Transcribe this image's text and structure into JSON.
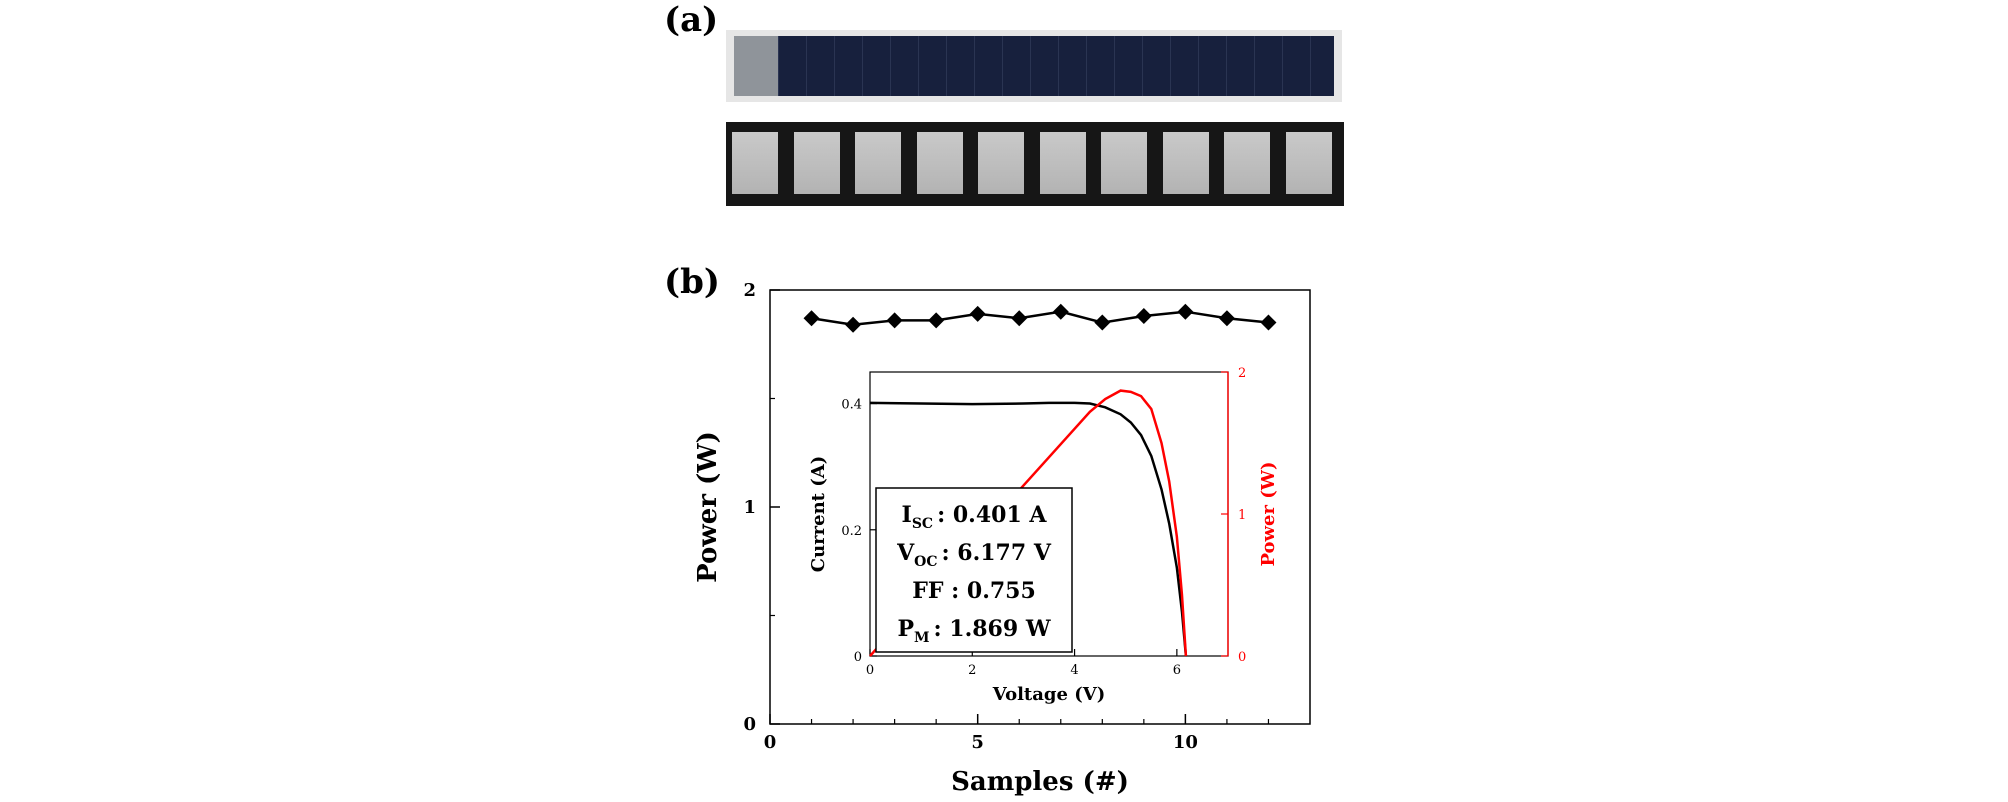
{
  "figure": {
    "panel_a_label": "(a)",
    "panel_b_label": "(b)"
  },
  "inset_box": {
    "isc_main": "I",
    "isc_sub": "SC",
    "isc_value": ": 0.401 A",
    "voc_main": "V",
    "voc_sub": "OC",
    "voc_value": ": 6.177 V",
    "ff_line": "FF : 0.755",
    "pm_main": "P",
    "pm_sub": "M",
    "pm_value": ": 1.869 W"
  },
  "colors": {
    "power_series": "#ff0000",
    "main_series": "#000000",
    "cell_photo": "#17203d"
  },
  "chart_data": [
    {
      "type": "line",
      "xlabel": "Samples (#)",
      "ylabel": "Power (W)",
      "xlim": [
        0,
        13
      ],
      "ylim": [
        0,
        2
      ],
      "xticks": [
        0,
        5,
        10
      ],
      "yticks": [
        0,
        1,
        2
      ],
      "marker": "diamond",
      "x": [
        1,
        2,
        3,
        4,
        5,
        6,
        7,
        8,
        9,
        10,
        11,
        12
      ],
      "y": [
        1.87,
        1.84,
        1.86,
        1.86,
        1.89,
        1.87,
        1.9,
        1.85,
        1.88,
        1.9,
        1.87,
        1.85
      ]
    },
    {
      "type": "line",
      "xlabel": "Voltage (V)",
      "ylabel": "Current (A)",
      "y2label": "Power (W)",
      "xlim": [
        0,
        7
      ],
      "ylim": [
        0,
        0.45
      ],
      "y2lim": [
        0,
        2
      ],
      "xticks": [
        0,
        2,
        4,
        6
      ],
      "yticks": [
        0,
        0.2,
        0.4
      ],
      "y2ticks": [
        0,
        1,
        2
      ],
      "series": [
        {
          "axis": "left",
          "color": "#000000",
          "x": [
            0,
            1,
            2,
            3,
            3.5,
            4,
            4.3,
            4.6,
            4.9,
            5.1,
            5.3,
            5.5,
            5.7,
            5.85,
            6.0,
            6.1,
            6.177
          ],
          "y": [
            0.401,
            0.4,
            0.399,
            0.4,
            0.401,
            0.401,
            0.4,
            0.394,
            0.383,
            0.37,
            0.35,
            0.317,
            0.264,
            0.21,
            0.14,
            0.07,
            0
          ]
        },
        {
          "axis": "right",
          "color": "#ff0000",
          "x": [
            0,
            1,
            2,
            3,
            3.5,
            4,
            4.3,
            4.6,
            4.9,
            5.1,
            5.3,
            5.5,
            5.7,
            5.85,
            6.0,
            6.1,
            6.177
          ],
          "y": [
            0,
            0.4,
            0.8,
            1.2,
            1.4,
            1.6,
            1.72,
            1.81,
            1.869,
            1.86,
            1.83,
            1.74,
            1.5,
            1.23,
            0.84,
            0.43,
            0
          ]
        }
      ]
    }
  ]
}
